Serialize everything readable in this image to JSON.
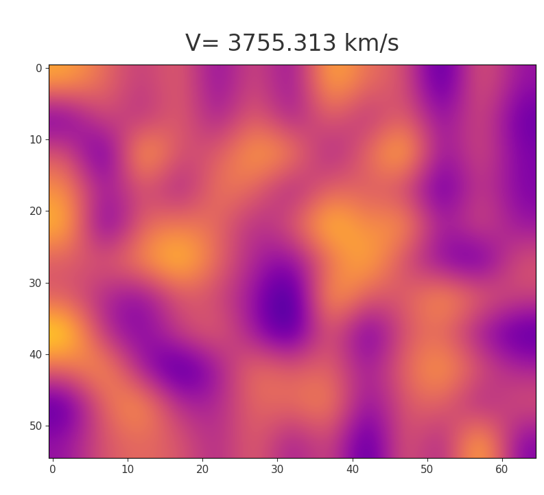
{
  "chart_data": {
    "type": "heatmap",
    "title": "V= 3755.313 km/s",
    "color": "plasma",
    "xlim": [
      -0.5,
      64.5
    ],
    "ylim": [
      54.5,
      -0.5
    ],
    "xticks": [
      0,
      10,
      20,
      30,
      40,
      50,
      60
    ],
    "yticks": [
      0,
      10,
      20,
      30,
      40,
      50
    ],
    "cells": [
      [
        0.75,
        0.6,
        0.45,
        0.6,
        0.3,
        0.55,
        0.3,
        0.8,
        0.6,
        0.55,
        0.15,
        0.6,
        0.35
      ],
      [
        0.25,
        0.55,
        0.4,
        0.6,
        0.35,
        0.6,
        0.35,
        0.6,
        0.4,
        0.6,
        0.3,
        0.55,
        0.25
      ],
      [
        0.55,
        0.15,
        0.85,
        0.5,
        0.55,
        0.75,
        0.7,
        0.35,
        0.6,
        0.85,
        0.3,
        0.55,
        0.3
      ],
      [
        0.7,
        0.35,
        0.55,
        0.35,
        0.65,
        0.6,
        0.35,
        0.6,
        0.55,
        0.5,
        0.2,
        0.5,
        0.3
      ],
      [
        0.8,
        0.2,
        0.6,
        0.65,
        0.6,
        0.4,
        0.55,
        0.85,
        0.65,
        0.75,
        0.35,
        0.55,
        0.35
      ],
      [
        0.55,
        0.55,
        0.7,
        0.85,
        0.6,
        0.4,
        0.3,
        0.6,
        0.8,
        0.5,
        0.3,
        0.2,
        0.55
      ],
      [
        0.55,
        0.4,
        0.3,
        0.55,
        0.5,
        0.35,
        0.1,
        0.8,
        0.55,
        0.55,
        0.75,
        0.6,
        0.5
      ],
      [
        0.9,
        0.4,
        0.3,
        0.5,
        0.6,
        0.35,
        0.15,
        0.6,
        0.2,
        0.55,
        0.6,
        0.35,
        0.2
      ],
      [
        0.6,
        0.75,
        0.35,
        0.15,
        0.35,
        0.65,
        0.55,
        0.6,
        0.35,
        0.6,
        0.75,
        0.55,
        0.4
      ],
      [
        0.2,
        0.6,
        0.75,
        0.4,
        0.4,
        0.6,
        0.6,
        0.7,
        0.3,
        0.55,
        0.6,
        0.35,
        0.55
      ],
      [
        0.35,
        0.55,
        0.6,
        0.55,
        0.4,
        0.6,
        0.35,
        0.55,
        0.15,
        0.6,
        0.35,
        0.85,
        0.3
      ]
    ]
  }
}
